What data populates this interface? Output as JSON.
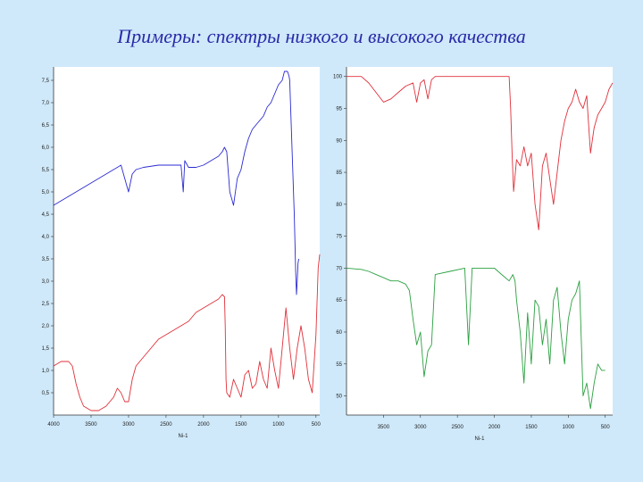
{
  "title": "Примеры: спектры низкого и высокого качества",
  "colors": {
    "background": "#cfe9fa",
    "title": "#2a2aa8",
    "blue": "#2a2ad0",
    "red": "#e0303a",
    "green": "#2aa040"
  },
  "chart_data": [
    {
      "type": "line",
      "panel": "left",
      "xlabel": "Ni-1",
      "xlim": [
        4000,
        450
      ],
      "ylim": [
        0,
        7.8
      ],
      "x_ticks": [
        "4000",
        "3500",
        "3000",
        "2500",
        "2000",
        "1500",
        "1000",
        "500"
      ],
      "y_ticks": [
        "0,5",
        "1,0",
        "1,5",
        "2,0",
        "2,5",
        "3,0",
        "3,5",
        "4,0",
        "4,5",
        "5,0",
        "5,5",
        "6,0",
        "6,5",
        "7,0",
        "7,5"
      ],
      "series": [
        {
          "color": "blue",
          "x": [
            4000,
            3900,
            3800,
            3700,
            3600,
            3500,
            3400,
            3250,
            3150,
            3100,
            3050,
            3000,
            2950,
            2900,
            2800,
            2600,
            2350,
            2300,
            2270,
            2250,
            2200,
            2100,
            2000,
            1900,
            1800,
            1750,
            1720,
            1690,
            1650,
            1600,
            1550,
            1500,
            1450,
            1400,
            1350,
            1300,
            1250,
            1200,
            1150,
            1100,
            1050,
            1000,
            950,
            920,
            880,
            860,
            850,
            830,
            810,
            790,
            770,
            760,
            750,
            740,
            730
          ],
          "y": [
            4.7,
            4.8,
            4.9,
            5.0,
            5.1,
            5.2,
            5.3,
            5.45,
            5.55,
            5.6,
            5.3,
            5.0,
            5.4,
            5.5,
            5.55,
            5.6,
            5.6,
            5.6,
            5.0,
            5.7,
            5.55,
            5.55,
            5.6,
            5.7,
            5.8,
            5.9,
            6.0,
            5.9,
            5.0,
            4.7,
            5.3,
            5.5,
            5.9,
            6.2,
            6.4,
            6.5,
            6.6,
            6.7,
            6.9,
            7.0,
            7.2,
            7.4,
            7.5,
            7.7,
            7.7,
            7.6,
            7.5,
            6.5,
            5.5,
            4.5,
            3.2,
            2.7,
            3.0,
            3.4,
            3.5
          ]
        },
        {
          "color": "red",
          "x": [
            4000,
            3900,
            3800,
            3750,
            3700,
            3650,
            3600,
            3500,
            3400,
            3300,
            3200,
            3150,
            3100,
            3050,
            3000,
            2950,
            2900,
            2800,
            2700,
            2600,
            2500,
            2400,
            2300,
            2200,
            2100,
            2000,
            1900,
            1800,
            1750,
            1720,
            1710,
            1700,
            1690,
            1650,
            1600,
            1550,
            1500,
            1450,
            1400,
            1350,
            1300,
            1250,
            1200,
            1150,
            1100,
            1050,
            1000,
            950,
            900,
            850,
            800,
            750,
            700,
            650,
            600,
            550,
            500,
            470,
            450
          ],
          "y": [
            1.1,
            1.2,
            1.2,
            1.1,
            0.7,
            0.4,
            0.2,
            0.1,
            0.1,
            0.2,
            0.4,
            0.6,
            0.5,
            0.3,
            0.3,
            0.8,
            1.1,
            1.3,
            1.5,
            1.7,
            1.8,
            1.9,
            2.0,
            2.1,
            2.3,
            2.4,
            2.5,
            2.6,
            2.7,
            2.65,
            2.0,
            0.8,
            0.5,
            0.4,
            0.8,
            0.6,
            0.4,
            0.9,
            1.0,
            0.6,
            0.7,
            1.2,
            0.8,
            0.6,
            1.5,
            1.0,
            0.6,
            1.5,
            2.4,
            1.5,
            0.8,
            1.5,
            2.0,
            1.5,
            0.8,
            0.5,
            1.8,
            3.3,
            3.6
          ]
        }
      ]
    },
    {
      "type": "line",
      "panel": "right",
      "xlabel": "Ni-1",
      "xlim": [
        4000,
        400
      ],
      "ylim": [
        47,
        101.5
      ],
      "x_ticks": [
        "3500",
        "3000",
        "2500",
        "2000",
        "1500",
        "1000",
        "500"
      ],
      "y_ticks": [
        "100",
        "95",
        "90",
        "85",
        "80",
        "75",
        "70",
        "65",
        "60",
        "55",
        "50"
      ],
      "series": [
        {
          "color": "red",
          "x": [
            4000,
            3800,
            3700,
            3600,
            3500,
            3400,
            3300,
            3200,
            3100,
            3050,
            3000,
            2950,
            2900,
            2850,
            2800,
            2600,
            2400,
            2200,
            2000,
            1900,
            1800,
            1780,
            1760,
            1740,
            1700,
            1650,
            1600,
            1550,
            1500,
            1450,
            1400,
            1350,
            1300,
            1250,
            1200,
            1150,
            1100,
            1050,
            1000,
            950,
            900,
            850,
            800,
            750,
            700,
            650,
            600,
            550,
            500,
            450,
            400
          ],
          "y": [
            100,
            100,
            99,
            97.5,
            96,
            96.5,
            97.5,
            98.5,
            99,
            96,
            99,
            99.5,
            96.5,
            99.5,
            100,
            100,
            100,
            100,
            100,
            100,
            100,
            95,
            88,
            82,
            87,
            86,
            89,
            86,
            88,
            80,
            76,
            86,
            88,
            84,
            80,
            85,
            90,
            93,
            95,
            96,
            98,
            96,
            95,
            97,
            88,
            92,
            94,
            95,
            96,
            98,
            99
          ]
        },
        {
          "color": "green",
          "x": [
            4000,
            3800,
            3700,
            3600,
            3500,
            3400,
            3300,
            3200,
            3150,
            3100,
            3050,
            3000,
            2950,
            2900,
            2850,
            2800,
            2600,
            2400,
            2350,
            2300,
            2250,
            2200,
            2000,
            1900,
            1800,
            1750,
            1720,
            1700,
            1650,
            1600,
            1550,
            1500,
            1450,
            1400,
            1350,
            1300,
            1250,
            1200,
            1150,
            1100,
            1050,
            1000,
            950,
            900,
            850,
            800,
            750,
            700,
            650,
            600,
            550,
            500
          ],
          "y": [
            70,
            69.8,
            69.5,
            69,
            68.5,
            68,
            68,
            67.5,
            66.5,
            62,
            58,
            60,
            53,
            57,
            58,
            69,
            69.5,
            70,
            58,
            70,
            70,
            70,
            70,
            69,
            68,
            69,
            68,
            65,
            60,
            52,
            63,
            55,
            65,
            64,
            58,
            62,
            55,
            65,
            67,
            60,
            55,
            62,
            65,
            66,
            68,
            50,
            52,
            48,
            52,
            55,
            54,
            54
          ]
        }
      ]
    }
  ]
}
